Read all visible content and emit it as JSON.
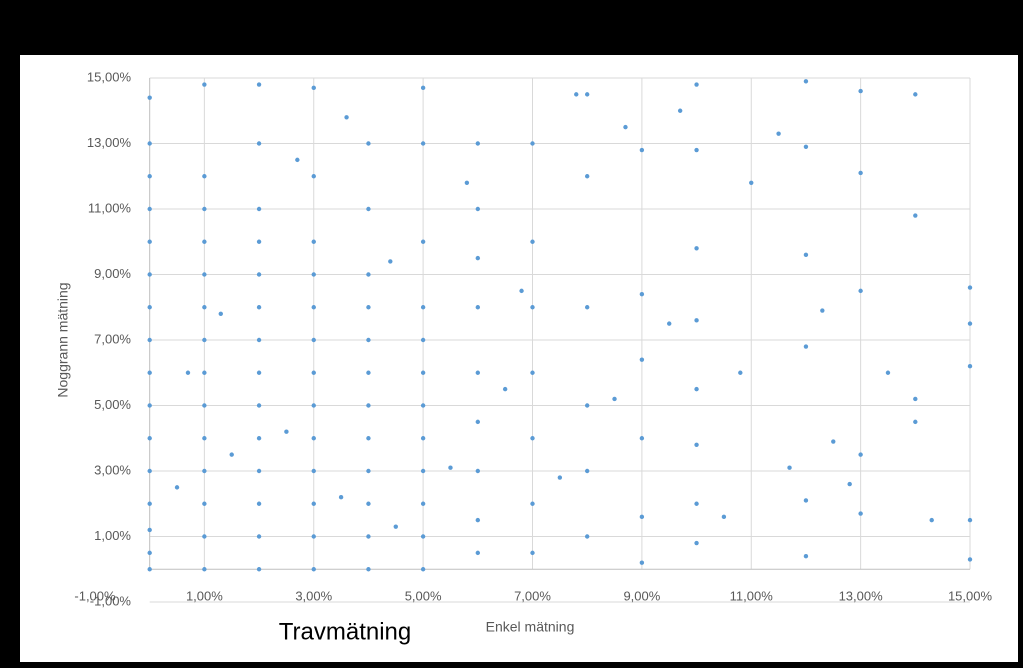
{
  "chart_data": {
    "type": "scatter",
    "x_label": "Enkel mätning",
    "y_label": "Noggrann mätning",
    "annotation": "Travmätning",
    "color": "#5b9bd5",
    "grid": true,
    "xlim": [
      -1,
      15
    ],
    "ylim": [
      -1,
      15
    ],
    "xticks": [
      {
        "value": -1,
        "label": "-1,00%"
      },
      {
        "value": 1,
        "label": "1,00%"
      },
      {
        "value": 3,
        "label": "3,00%"
      },
      {
        "value": 5,
        "label": "5,00%"
      },
      {
        "value": 7,
        "label": "7,00%"
      },
      {
        "value": 9,
        "label": "9,00%"
      },
      {
        "value": 11,
        "label": "11,00%"
      },
      {
        "value": 13,
        "label": "13,00%"
      },
      {
        "value": 15,
        "label": "15,00%"
      }
    ],
    "yticks": [
      {
        "value": -1,
        "label": "-1,00%"
      },
      {
        "value": 1,
        "label": "1,00%"
      },
      {
        "value": 3,
        "label": "3,00%"
      },
      {
        "value": 5,
        "label": "5,00%"
      },
      {
        "value": 7,
        "label": "7,00%"
      },
      {
        "value": 9,
        "label": "9,00%"
      },
      {
        "value": 11,
        "label": "11,00%"
      },
      {
        "value": 13,
        "label": "13,00%"
      },
      {
        "value": 15,
        "label": "15,00%"
      }
    ],
    "x": [
      0,
      0,
      0,
      0,
      0,
      0,
      0,
      0,
      0,
      0,
      0,
      0,
      0,
      0,
      0,
      0,
      1,
      1,
      1,
      1,
      1,
      1,
      1,
      1,
      1,
      1,
      1,
      1,
      1,
      1,
      2,
      2,
      2,
      2,
      2,
      2,
      2,
      2,
      2,
      2,
      2,
      2,
      2,
      2,
      3,
      3,
      3,
      3,
      3,
      3,
      3,
      3,
      3,
      3,
      3,
      3,
      3,
      4,
      4,
      4,
      4,
      4,
      4,
      4,
      4,
      4,
      4,
      4,
      4,
      5,
      5,
      5,
      5,
      5,
      5,
      5,
      5,
      5,
      5,
      5,
      5,
      6,
      6,
      6,
      6,
      6,
      6,
      6,
      6,
      6,
      7,
      7,
      7,
      7,
      7,
      7,
      7,
      8,
      8,
      8,
      8,
      8,
      8,
      9,
      9,
      9,
      9,
      9,
      9,
      10,
      10,
      10,
      10,
      10,
      10,
      10,
      10,
      12,
      12,
      12,
      12,
      12,
      12,
      13,
      13,
      13,
      13,
      13,
      14,
      14,
      14,
      14,
      15,
      15,
      15,
      15,
      15,
      0.5,
      0.7,
      1.5,
      1.3,
      2.5,
      2.7,
      3.5,
      3.6,
      4.5,
      4.4,
      5.5,
      5.8,
      6.5,
      6.8,
      7.5,
      7.8,
      8.5,
      8.7,
      9.5,
      9.7,
      10.5,
      10.8,
      11,
      11.5,
      11.7,
      12.5,
      12.8,
      13.5,
      14.3,
      12.3
    ],
    "values": [
      0,
      0.5,
      1.2,
      2,
      3,
      4,
      5,
      6,
      7,
      8,
      9,
      10,
      11,
      12,
      13,
      14.4,
      0,
      1,
      2,
      3,
      4,
      5,
      6,
      7,
      8,
      9,
      10,
      11,
      12,
      14.8,
      0,
      1,
      2,
      3,
      4,
      5,
      6,
      7,
      8,
      9,
      10,
      11,
      13,
      14.8,
      0,
      1,
      2,
      3,
      4,
      5,
      6,
      7,
      8,
      9,
      10,
      12,
      14.7,
      0,
      1,
      2,
      3,
      4,
      5,
      6,
      7,
      8,
      9,
      11,
      13,
      0,
      1,
      2,
      3,
      4,
      5,
      6,
      7,
      8,
      10,
      13,
      14.7,
      0.5,
      1.5,
      3,
      4.5,
      6,
      8,
      9.5,
      11,
      13,
      0.5,
      2,
      4,
      6,
      8,
      10,
      13,
      1,
      3,
      5,
      8,
      12,
      14.5,
      0.2,
      1.6,
      4,
      6.4,
      8.4,
      12.8,
      0.8,
      2,
      3.8,
      5.5,
      7.6,
      9.8,
      12.8,
      14.8,
      0.4,
      2.1,
      6.8,
      9.6,
      12.9,
      14.9,
      1.7,
      3.5,
      8.5,
      12.1,
      14.6,
      4.5,
      5.2,
      10.8,
      14.5,
      0.3,
      1.5,
      6.2,
      7.5,
      8.6,
      2.5,
      6,
      3.5,
      7.8,
      4.2,
      12.5,
      2.2,
      13.8,
      1.3,
      9.4,
      3.1,
      11.8,
      5.5,
      8.5,
      2.8,
      14.5,
      5.2,
      13.5,
      7.5,
      14,
      1.6,
      6,
      11.8,
      13.3,
      3.1,
      3.9,
      2.6,
      6,
      1.5,
      7.9
    ]
  }
}
